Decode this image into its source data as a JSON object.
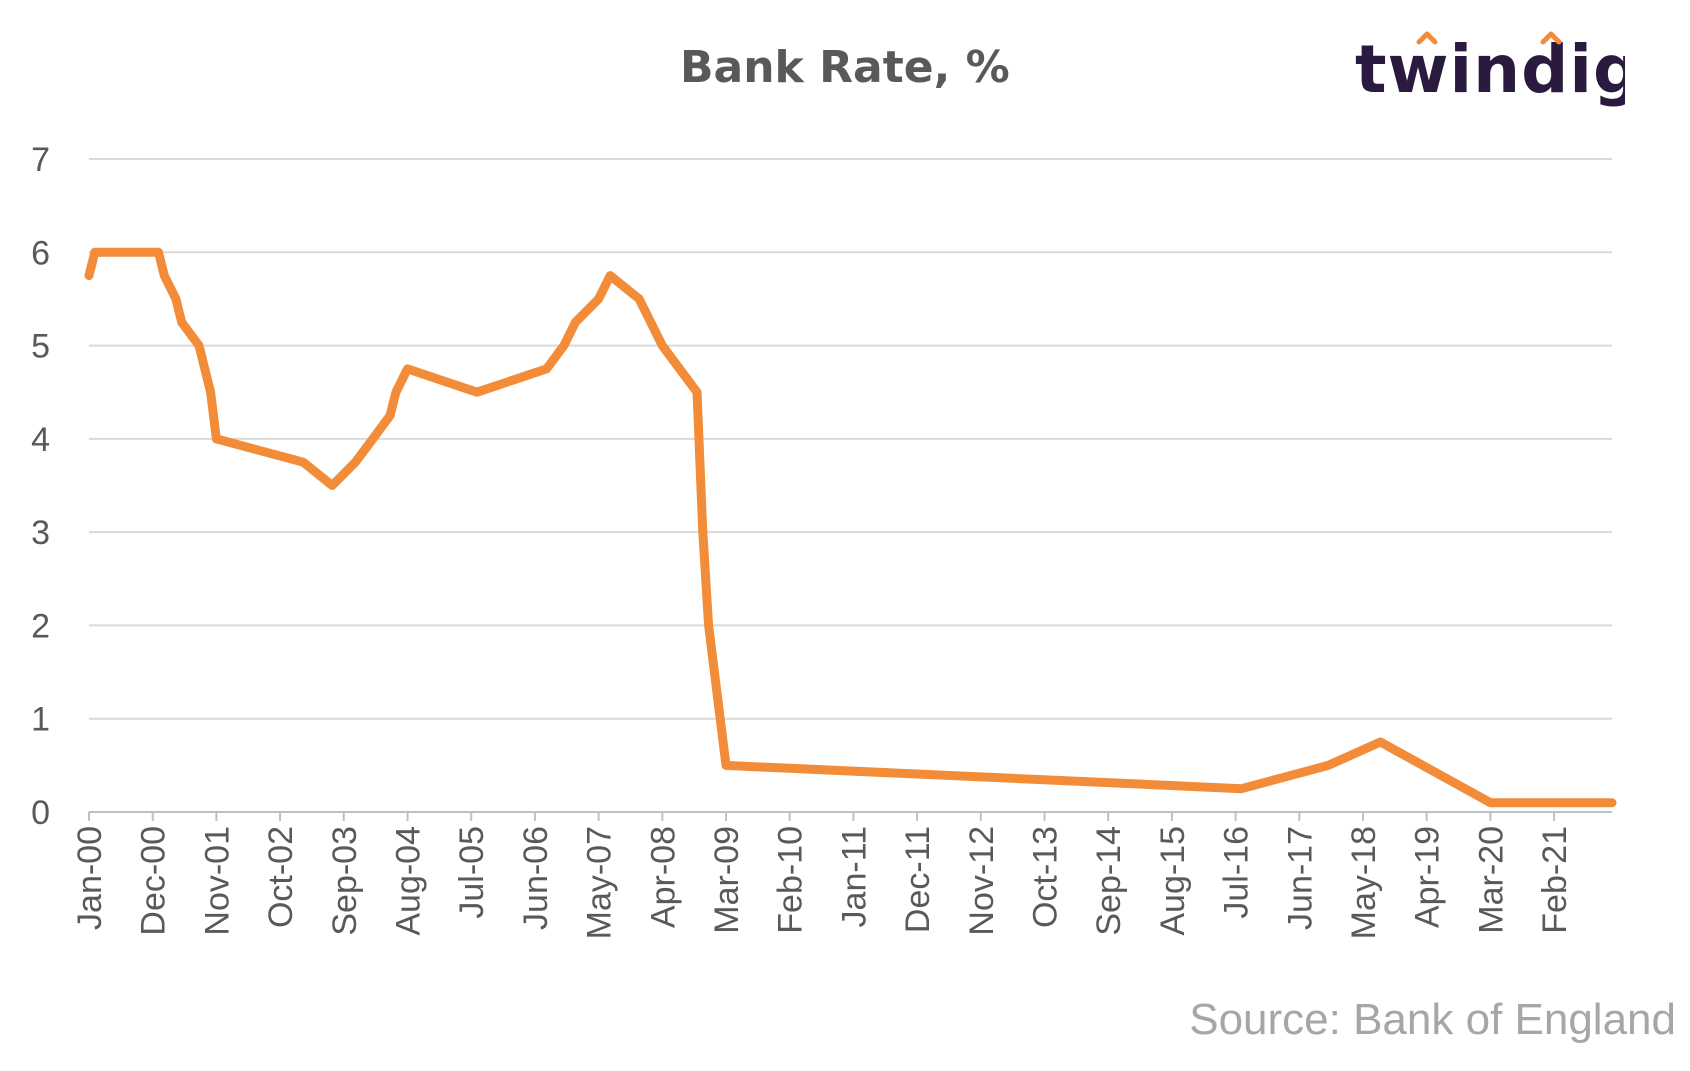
{
  "title": "Bank Rate, %",
  "logo": {
    "text": "twindig",
    "color": "#2b1a3f",
    "accent": "#f28c38"
  },
  "source": "Source: Bank of England",
  "colors": {
    "line": "#f28c38",
    "grid": "#d9d9d9",
    "axis_text": "#595959"
  },
  "chart_data": {
    "type": "line",
    "title": "Bank Rate, %",
    "xlabel": "",
    "ylabel": "",
    "ylim": [
      0,
      7
    ],
    "yticks": [
      "0",
      "1",
      "2",
      "3",
      "4",
      "5",
      "6",
      "7"
    ],
    "xlim": [
      "Jan-00",
      "Dec-21"
    ],
    "xticks": [
      "Jan-00",
      "Dec-00",
      "Nov-01",
      "Oct-02",
      "Sep-03",
      "Aug-04",
      "Jul-05",
      "Jun-06",
      "May-07",
      "Apr-08",
      "Mar-09",
      "Feb-10",
      "Jan-11",
      "Dec-11",
      "Nov-12",
      "Oct-13",
      "Sep-14",
      "Aug-15",
      "Jul-16",
      "Jun-17",
      "May-18",
      "Apr-19",
      "Mar-20",
      "Feb-21"
    ],
    "grid": true,
    "legend": "none",
    "series": [
      {
        "x": [
          "Jan-00",
          "Feb-00",
          "Jan-01",
          "Feb-01",
          "Apr-01",
          "May-01",
          "Aug-01",
          "Sep-01",
          "Oct-01",
          "Nov-01",
          "Feb-03",
          "Jul-03",
          "Nov-03",
          "Feb-04",
          "May-04",
          "Jun-04",
          "Aug-04",
          "Aug-05",
          "Aug-06",
          "Nov-06",
          "Jan-07",
          "May-07",
          "Jul-07",
          "Dec-07",
          "Feb-08",
          "Apr-08",
          "Oct-08",
          "Nov-08",
          "Dec-08",
          "Jan-09",
          "Feb-09",
          "Mar-09",
          "Aug-16",
          "Nov-17",
          "Aug-18",
          "Mar-20",
          "Dec-21"
        ],
        "values": [
          5.75,
          6.0,
          6.0,
          5.75,
          5.5,
          5.25,
          5.0,
          4.75,
          4.5,
          4.0,
          3.75,
          3.5,
          3.75,
          4.0,
          4.25,
          4.5,
          4.75,
          4.5,
          4.75,
          5.0,
          5.25,
          5.5,
          5.75,
          5.5,
          5.25,
          5.0,
          4.5,
          3.0,
          2.0,
          1.5,
          1.0,
          0.5,
          0.25,
          0.5,
          0.75,
          0.1,
          0.1
        ]
      }
    ]
  }
}
